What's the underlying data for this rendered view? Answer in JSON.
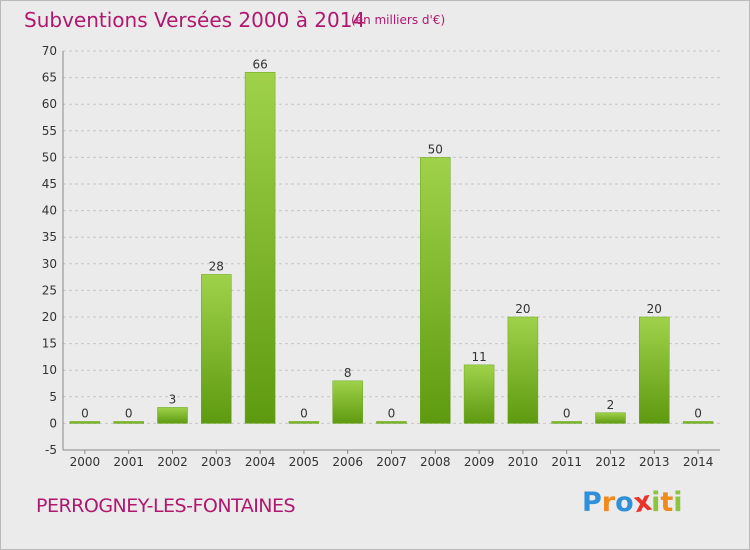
{
  "chart_data": {
    "type": "bar",
    "title": "Subventions Versées 2000 à 2014",
    "subtitle": "(en milliers d'€)",
    "categories": [
      "2000",
      "2001",
      "2002",
      "2003",
      "2004",
      "2005",
      "2006",
      "2007",
      "2008",
      "2009",
      "2010",
      "2011",
      "2012",
      "2013",
      "2014"
    ],
    "values": [
      0,
      0,
      3,
      28,
      66,
      0,
      8,
      0,
      50,
      11,
      20,
      0,
      2,
      20,
      0
    ],
    "ylim": [
      -5,
      70
    ],
    "yticks": [
      -5,
      0,
      5,
      10,
      15,
      20,
      25,
      30,
      35,
      40,
      45,
      50,
      55,
      60,
      65,
      70
    ],
    "xlabel": "",
    "ylabel": "",
    "grid": true,
    "bar_color": "#7ab829"
  },
  "footer": {
    "place_name": "PERROGNEY-LES-FONTAINES"
  },
  "logo": {
    "text": "Proxiti",
    "letters": [
      {
        "ch": "P",
        "color": "#2f8fd8"
      },
      {
        "ch": "r",
        "color": "#f08a1c"
      },
      {
        "ch": "o",
        "color": "#2f8fd8"
      },
      {
        "ch": "x",
        "color": "#e8342a"
      },
      {
        "ch": "i",
        "color": "#8bc43f"
      },
      {
        "ch": "t",
        "color": "#f08a1c"
      },
      {
        "ch": "i",
        "color": "#8bc43f"
      }
    ]
  }
}
